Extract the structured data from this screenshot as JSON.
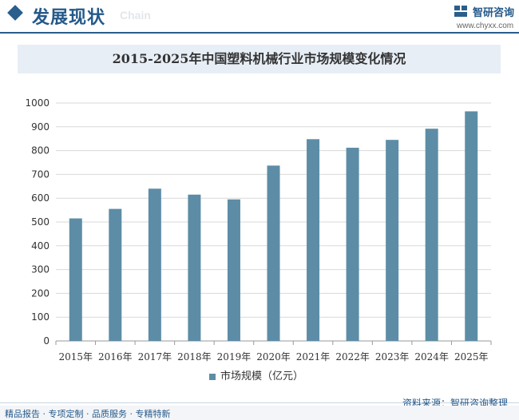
{
  "header": {
    "section_title": "发展现状",
    "section_sub": "Chain",
    "logo_name": "智研咨询",
    "logo_url": "www.chyxx.com"
  },
  "chart_data": {
    "type": "bar",
    "title": "2015-2025年中国塑料机械行业市场规模变化情况",
    "categories": [
      "2015年",
      "2016年",
      "2017年",
      "2018年",
      "2019年",
      "2020年",
      "2021年",
      "2022年",
      "2023年",
      "2024年",
      "2025年"
    ],
    "series": [
      {
        "name": "市场规模（亿元）",
        "values": [
          515,
          555,
          640,
          615,
          595,
          737,
          848,
          812,
          845,
          892,
          965
        ]
      }
    ],
    "ylim": [
      0,
      1000
    ],
    "yticks": [
      0,
      100,
      200,
      300,
      400,
      500,
      600,
      700,
      800,
      900,
      1000
    ],
    "xlabel": "",
    "ylabel": "",
    "grid": true,
    "legend": "bottom-center",
    "bar_color": "#5d8da6"
  },
  "footer": {
    "source": "资料来源：智研咨询整理",
    "tagline": "精品报告 · 专项定制 · 品质服务 · 专精特新"
  }
}
